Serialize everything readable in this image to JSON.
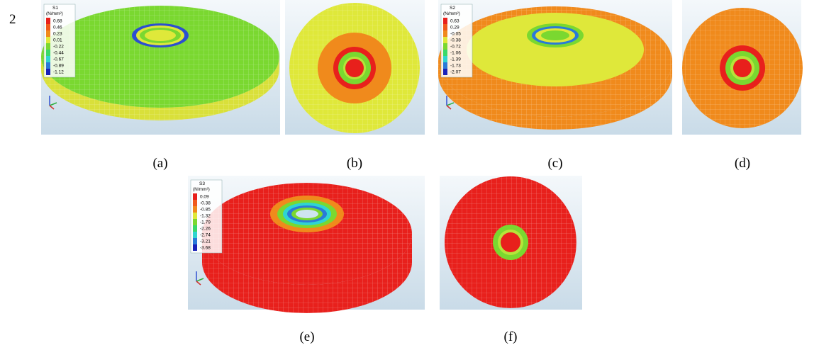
{
  "figure_number": "2",
  "panels": [
    {
      "caption": "(a)",
      "legend": {
        "title": "S1",
        "unit": "(N/mm²)",
        "labels": [
          "0.68",
          "0.46",
          "0.23",
          "0.01",
          "-0.22",
          "-0.44",
          "-0.67",
          "-0.89",
          "-1.12"
        ]
      }
    },
    {
      "caption": "(b)"
    },
    {
      "caption": "(c)",
      "legend": {
        "title": "S2",
        "unit": "(N/mm²)",
        "labels": [
          "0.63",
          "0.29",
          "-0.05",
          "-0.38",
          "-0.72",
          "-1.06",
          "-1.39",
          "-1.73",
          "-2.07"
        ]
      }
    },
    {
      "caption": "(d)"
    },
    {
      "caption": "(e)",
      "legend": {
        "title": "S3",
        "unit": "(N/mm²)",
        "labels": [
          "0.09",
          "-0.38",
          "-0.85",
          "-1.32",
          "-1.79",
          "-2.26",
          "-2.74",
          "-3.21",
          "-3.68"
        ]
      }
    },
    {
      "caption": "(f)"
    }
  ]
}
